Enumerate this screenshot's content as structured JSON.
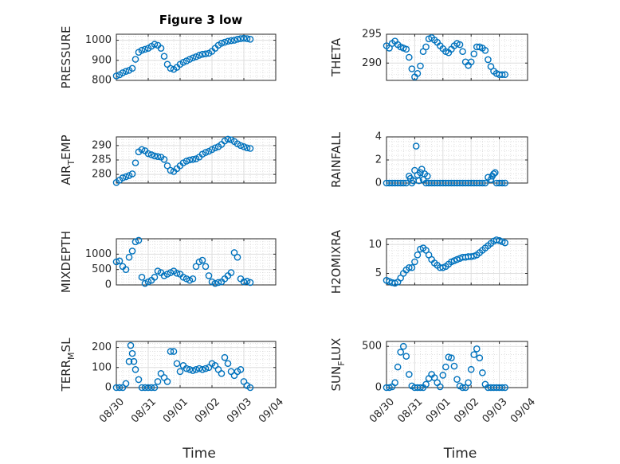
{
  "figure": {
    "title": "Figure 3 low"
  },
  "chart_data": [
    {
      "type": "scatter",
      "ylabel": "PRESSURE",
      "ylim": [
        800,
        1030
      ],
      "yticks": [
        800,
        900,
        1000
      ],
      "yticklabels": [
        "800",
        "900",
        "1000"
      ],
      "xlim": [
        0,
        5
      ],
      "xticks": [
        0,
        1,
        2,
        3,
        4,
        5
      ],
      "xticklabels": [
        "08/30",
        "08/31",
        "09/01",
        "09/02",
        "09/03",
        "09/04"
      ],
      "show_xticklabels": false,
      "xlabel": "",
      "grid": true,
      "minor_grid": true,
      "marker": "circle-open",
      "color": "#0072BD",
      "x": [
        0.0,
        0.1,
        0.2,
        0.3,
        0.4,
        0.5,
        0.6,
        0.7,
        0.8,
        0.9,
        1.0,
        1.1,
        1.2,
        1.3,
        1.4,
        1.5,
        1.6,
        1.7,
        1.8,
        1.9,
        2.0,
        2.1,
        2.2,
        2.3,
        2.4,
        2.5,
        2.6,
        2.7,
        2.8,
        2.9,
        3.0,
        3.1,
        3.2,
        3.3,
        3.4,
        3.5,
        3.6,
        3.7,
        3.8,
        3.9,
        4.0,
        4.1,
        4.2
      ],
      "y": [
        822,
        828,
        838,
        845,
        850,
        860,
        905,
        940,
        950,
        955,
        960,
        970,
        980,
        975,
        960,
        920,
        880,
        860,
        855,
        865,
        880,
        890,
        897,
        905,
        912,
        918,
        925,
        930,
        932,
        935,
        945,
        960,
        975,
        985,
        990,
        995,
        998,
        1000,
        1005,
        1008,
        1010,
        1008,
        1005
      ]
    },
    {
      "type": "scatter",
      "ylabel": "THETA",
      "ylim": [
        287,
        295
      ],
      "yticks": [
        290,
        295
      ],
      "yticklabels": [
        "290",
        "295"
      ],
      "xlim": [
        0,
        5
      ],
      "xticks": [
        0,
        1,
        2,
        3,
        4,
        5
      ],
      "xticklabels": [
        "08/30",
        "08/31",
        "09/01",
        "09/02",
        "09/03",
        "09/04"
      ],
      "show_xticklabels": false,
      "xlabel": "",
      "grid": true,
      "minor_grid": true,
      "marker": "circle-open",
      "color": "#0072BD",
      "x": [
        0.0,
        0.1,
        0.2,
        0.3,
        0.4,
        0.5,
        0.6,
        0.7,
        0.8,
        0.9,
        1.0,
        1.1,
        1.2,
        1.3,
        1.4,
        1.5,
        1.6,
        1.7,
        1.8,
        1.9,
        2.0,
        2.1,
        2.2,
        2.3,
        2.4,
        2.5,
        2.6,
        2.7,
        2.8,
        2.9,
        3.0,
        3.1,
        3.2,
        3.3,
        3.4,
        3.5,
        3.6,
        3.7,
        3.8,
        3.9,
        4.0,
        4.1,
        4.2
      ],
      "y": [
        293.0,
        292.6,
        293.4,
        293.8,
        293.2,
        292.8,
        292.6,
        292.4,
        291.0,
        289.0,
        287.6,
        288.2,
        289.5,
        292.0,
        292.8,
        294.2,
        294.4,
        294.0,
        293.6,
        293.0,
        292.5,
        292.0,
        291.8,
        292.4,
        293.0,
        293.4,
        293.2,
        292.0,
        290.2,
        289.6,
        290.2,
        291.6,
        292.8,
        292.8,
        292.6,
        292.2,
        290.6,
        289.4,
        288.6,
        288.2,
        288.0,
        288.0,
        288.0
      ]
    },
    {
      "type": "scatter",
      "ylabel": "AIR_TEMP",
      "ylabel_main": "AIR",
      "ylabel_sub": "T",
      "ylabel_rest": "EMP",
      "ylim": [
        277,
        293
      ],
      "yticks": [
        280,
        285,
        290
      ],
      "yticklabels": [
        "280",
        "285",
        "290"
      ],
      "xlim": [
        0,
        5
      ],
      "xticks": [
        0,
        1,
        2,
        3,
        4,
        5
      ],
      "xticklabels": [
        "08/30",
        "08/31",
        "09/01",
        "09/02",
        "09/03",
        "09/04"
      ],
      "show_xticklabels": false,
      "xlabel": "",
      "grid": true,
      "minor_grid": true,
      "marker": "circle-open",
      "color": "#0072BD",
      "x": [
        0.0,
        0.1,
        0.2,
        0.3,
        0.4,
        0.5,
        0.6,
        0.7,
        0.8,
        0.9,
        1.0,
        1.1,
        1.2,
        1.3,
        1.4,
        1.5,
        1.6,
        1.7,
        1.8,
        1.9,
        2.0,
        2.1,
        2.2,
        2.3,
        2.4,
        2.5,
        2.6,
        2.7,
        2.8,
        2.9,
        3.0,
        3.1,
        3.2,
        3.3,
        3.4,
        3.5,
        3.6,
        3.7,
        3.8,
        3.9,
        4.0,
        4.1,
        4.2
      ],
      "y": [
        277.2,
        278.0,
        278.8,
        279.2,
        279.6,
        280.2,
        284.0,
        287.8,
        288.6,
        288.2,
        287.2,
        286.8,
        286.4,
        286.2,
        286.0,
        285.2,
        283.0,
        281.4,
        281.0,
        282.0,
        283.0,
        284.0,
        284.6,
        285.0,
        285.2,
        285.4,
        286.0,
        287.0,
        287.6,
        288.0,
        288.6,
        289.2,
        289.6,
        290.4,
        291.6,
        292.2,
        292.0,
        291.4,
        290.6,
        290.0,
        289.6,
        289.2,
        289.0
      ]
    },
    {
      "type": "scatter",
      "ylabel": "RAINFALL",
      "ylim": [
        0,
        4
      ],
      "yticks": [
        0,
        2,
        4
      ],
      "yticklabels": [
        "0",
        "2",
        "4"
      ],
      "xlim": [
        0,
        5
      ],
      "xticks": [
        0,
        1,
        2,
        3,
        4,
        5
      ],
      "xticklabels": [
        "08/30",
        "08/31",
        "09/01",
        "09/02",
        "09/03",
        "09/04"
      ],
      "show_xticklabels": false,
      "xlabel": "",
      "grid": true,
      "minor_grid": true,
      "marker": "circle-open",
      "color": "#0072BD",
      "x": [
        0.0,
        0.1,
        0.2,
        0.3,
        0.4,
        0.5,
        0.6,
        0.7,
        0.8,
        0.85,
        0.9,
        0.95,
        1.0,
        1.05,
        1.1,
        1.15,
        1.2,
        1.25,
        1.3,
        1.35,
        1.4,
        1.45,
        1.5,
        1.6,
        1.7,
        1.8,
        1.9,
        2.0,
        2.1,
        2.2,
        2.3,
        2.4,
        2.5,
        2.6,
        2.7,
        2.8,
        2.9,
        3.0,
        3.1,
        3.2,
        3.3,
        3.4,
        3.5,
        3.6,
        3.7,
        3.75,
        3.8,
        3.85,
        3.9,
        4.0,
        4.1,
        4.2
      ],
      "y": [
        0,
        0,
        0,
        0,
        0,
        0,
        0,
        0,
        0.6,
        0.4,
        0,
        0.2,
        1.1,
        3.2,
        0.7,
        0.2,
        0.9,
        1.2,
        0.3,
        0.8,
        0,
        0.6,
        0,
        0,
        0,
        0,
        0,
        0,
        0,
        0,
        0,
        0,
        0,
        0,
        0,
        0,
        0,
        0,
        0,
        0,
        0,
        0,
        0,
        0.5,
        0.3,
        0.6,
        0.8,
        0.9,
        0,
        0,
        0,
        0
      ]
    },
    {
      "type": "scatter",
      "ylabel": "MIXDEPTH",
      "ylim": [
        0,
        1500
      ],
      "yticks": [
        0,
        500,
        1000
      ],
      "yticklabels": [
        "0",
        "500",
        "1000"
      ],
      "xlim": [
        0,
        5
      ],
      "xticks": [
        0,
        1,
        2,
        3,
        4,
        5
      ],
      "xticklabels": [
        "08/30",
        "08/31",
        "09/01",
        "09/02",
        "09/03",
        "09/04"
      ],
      "show_xticklabels": false,
      "xlabel": "",
      "grid": true,
      "minor_grid": true,
      "marker": "circle-open",
      "color": "#0072BD",
      "x": [
        0.0,
        0.1,
        0.2,
        0.3,
        0.4,
        0.5,
        0.6,
        0.7,
        0.8,
        0.9,
        1.0,
        1.1,
        1.2,
        1.3,
        1.4,
        1.5,
        1.6,
        1.7,
        1.8,
        1.9,
        2.0,
        2.1,
        2.2,
        2.3,
        2.4,
        2.5,
        2.6,
        2.7,
        2.8,
        2.9,
        3.0,
        3.1,
        3.2,
        3.3,
        3.4,
        3.5,
        3.6,
        3.7,
        3.8,
        3.9,
        4.0,
        4.1,
        4.2
      ],
      "y": [
        750,
        780,
        600,
        500,
        900,
        1100,
        1400,
        1450,
        250,
        50,
        100,
        150,
        250,
        450,
        400,
        300,
        350,
        400,
        450,
        380,
        350,
        250,
        200,
        150,
        200,
        600,
        750,
        800,
        600,
        300,
        100,
        50,
        80,
        100,
        200,
        300,
        400,
        1050,
        900,
        200,
        100,
        120,
        80
      ]
    },
    {
      "type": "scatter",
      "ylabel": "H2OMIXRA",
      "ylim": [
        3,
        11
      ],
      "yticks": [
        5,
        10
      ],
      "yticklabels": [
        "5",
        "10"
      ],
      "xlim": [
        0,
        5
      ],
      "xticks": [
        0,
        1,
        2,
        3,
        4,
        5
      ],
      "xticklabels": [
        "08/30",
        "08/31",
        "09/01",
        "09/02",
        "09/03",
        "09/04"
      ],
      "show_xticklabels": false,
      "xlabel": "",
      "grid": true,
      "minor_grid": true,
      "marker": "circle-open",
      "color": "#0072BD",
      "x": [
        0.0,
        0.1,
        0.2,
        0.3,
        0.4,
        0.5,
        0.6,
        0.7,
        0.8,
        0.9,
        1.0,
        1.1,
        1.2,
        1.3,
        1.4,
        1.5,
        1.6,
        1.7,
        1.8,
        1.9,
        2.0,
        2.1,
        2.2,
        2.3,
        2.4,
        2.5,
        2.6,
        2.7,
        2.8,
        2.9,
        3.0,
        3.1,
        3.2,
        3.3,
        3.4,
        3.5,
        3.6,
        3.7,
        3.8,
        3.9,
        4.0,
        4.1,
        4.2
      ],
      "y": [
        3.8,
        3.6,
        3.4,
        3.3,
        3.5,
        4.2,
        5.0,
        5.6,
        6.0,
        6.0,
        7.0,
        8.2,
        9.2,
        9.4,
        9.0,
        8.2,
        7.4,
        6.8,
        6.4,
        6.0,
        6.0,
        6.2,
        6.6,
        7.0,
        7.2,
        7.4,
        7.6,
        7.8,
        7.8,
        7.9,
        7.9,
        8.0,
        8.2,
        8.6,
        9.0,
        9.4,
        9.8,
        10.2,
        10.6,
        10.8,
        10.7,
        10.5,
        10.3
      ]
    },
    {
      "type": "scatter",
      "ylabel": "TERR_MSL",
      "ylabel_main": "TERR",
      "ylabel_sub": "M",
      "ylabel_rest": "SL",
      "ylim": [
        0,
        230
      ],
      "yticks": [
        0,
        100,
        200
      ],
      "yticklabels": [
        "0",
        "100",
        "200"
      ],
      "xlim": [
        0,
        5
      ],
      "xticks": [
        0,
        1,
        2,
        3,
        4,
        5
      ],
      "xticklabels": [
        "08/30",
        "08/31",
        "09/01",
        "09/02",
        "09/03",
        "09/04"
      ],
      "show_xticklabels": true,
      "xlabel": "Time",
      "grid": true,
      "minor_grid": true,
      "marker": "circle-open",
      "color": "#0072BD",
      "x": [
        0.0,
        0.1,
        0.2,
        0.3,
        0.4,
        0.45,
        0.5,
        0.55,
        0.6,
        0.7,
        0.8,
        0.9,
        1.0,
        1.1,
        1.2,
        1.3,
        1.4,
        1.5,
        1.6,
        1.7,
        1.8,
        1.9,
        2.0,
        2.1,
        2.2,
        2.3,
        2.4,
        2.5,
        2.6,
        2.7,
        2.8,
        2.9,
        3.0,
        3.1,
        3.2,
        3.3,
        3.4,
        3.5,
        3.6,
        3.7,
        3.8,
        3.9,
        4.0,
        4.1,
        4.2
      ],
      "y": [
        0,
        0,
        0,
        20,
        130,
        210,
        170,
        130,
        90,
        40,
        0,
        0,
        0,
        0,
        0,
        30,
        70,
        50,
        30,
        180,
        180,
        120,
        80,
        110,
        95,
        90,
        85,
        90,
        95,
        90,
        95,
        100,
        120,
        110,
        90,
        70,
        150,
        120,
        80,
        60,
        80,
        90,
        30,
        10,
        0
      ]
    },
    {
      "type": "scatter",
      "ylabel": "SUN_FLUX",
      "ylabel_main": "SUN",
      "ylabel_sub": "F",
      "ylabel_rest": "LUX",
      "ylim": [
        0,
        560
      ],
      "yticks": [
        0,
        500
      ],
      "yticklabels": [
        "0",
        "500"
      ],
      "xlim": [
        0,
        5
      ],
      "xticks": [
        0,
        1,
        2,
        3,
        4,
        5
      ],
      "xticklabels": [
        "08/30",
        "08/31",
        "09/01",
        "09/02",
        "09/03",
        "09/04"
      ],
      "show_xticklabels": true,
      "xlabel": "Time",
      "grid": true,
      "minor_grid": true,
      "marker": "circle-open",
      "color": "#0072BD",
      "x": [
        0.0,
        0.1,
        0.2,
        0.3,
        0.4,
        0.5,
        0.6,
        0.7,
        0.8,
        0.9,
        1.0,
        1.1,
        1.2,
        1.3,
        1.4,
        1.5,
        1.6,
        1.7,
        1.8,
        1.9,
        2.0,
        2.1,
        2.2,
        2.3,
        2.4,
        2.5,
        2.6,
        2.7,
        2.8,
        2.9,
        3.0,
        3.1,
        3.2,
        3.3,
        3.4,
        3.5,
        3.6,
        3.7,
        3.8,
        3.9,
        4.0,
        4.1,
        4.2
      ],
      "y": [
        0,
        0,
        10,
        60,
        250,
        430,
        500,
        380,
        160,
        20,
        0,
        0,
        0,
        0,
        40,
        110,
        160,
        120,
        60,
        10,
        150,
        250,
        370,
        360,
        260,
        100,
        20,
        0,
        0,
        60,
        220,
        400,
        470,
        360,
        180,
        40,
        0,
        0,
        0,
        0,
        0,
        0,
        0
      ]
    }
  ]
}
